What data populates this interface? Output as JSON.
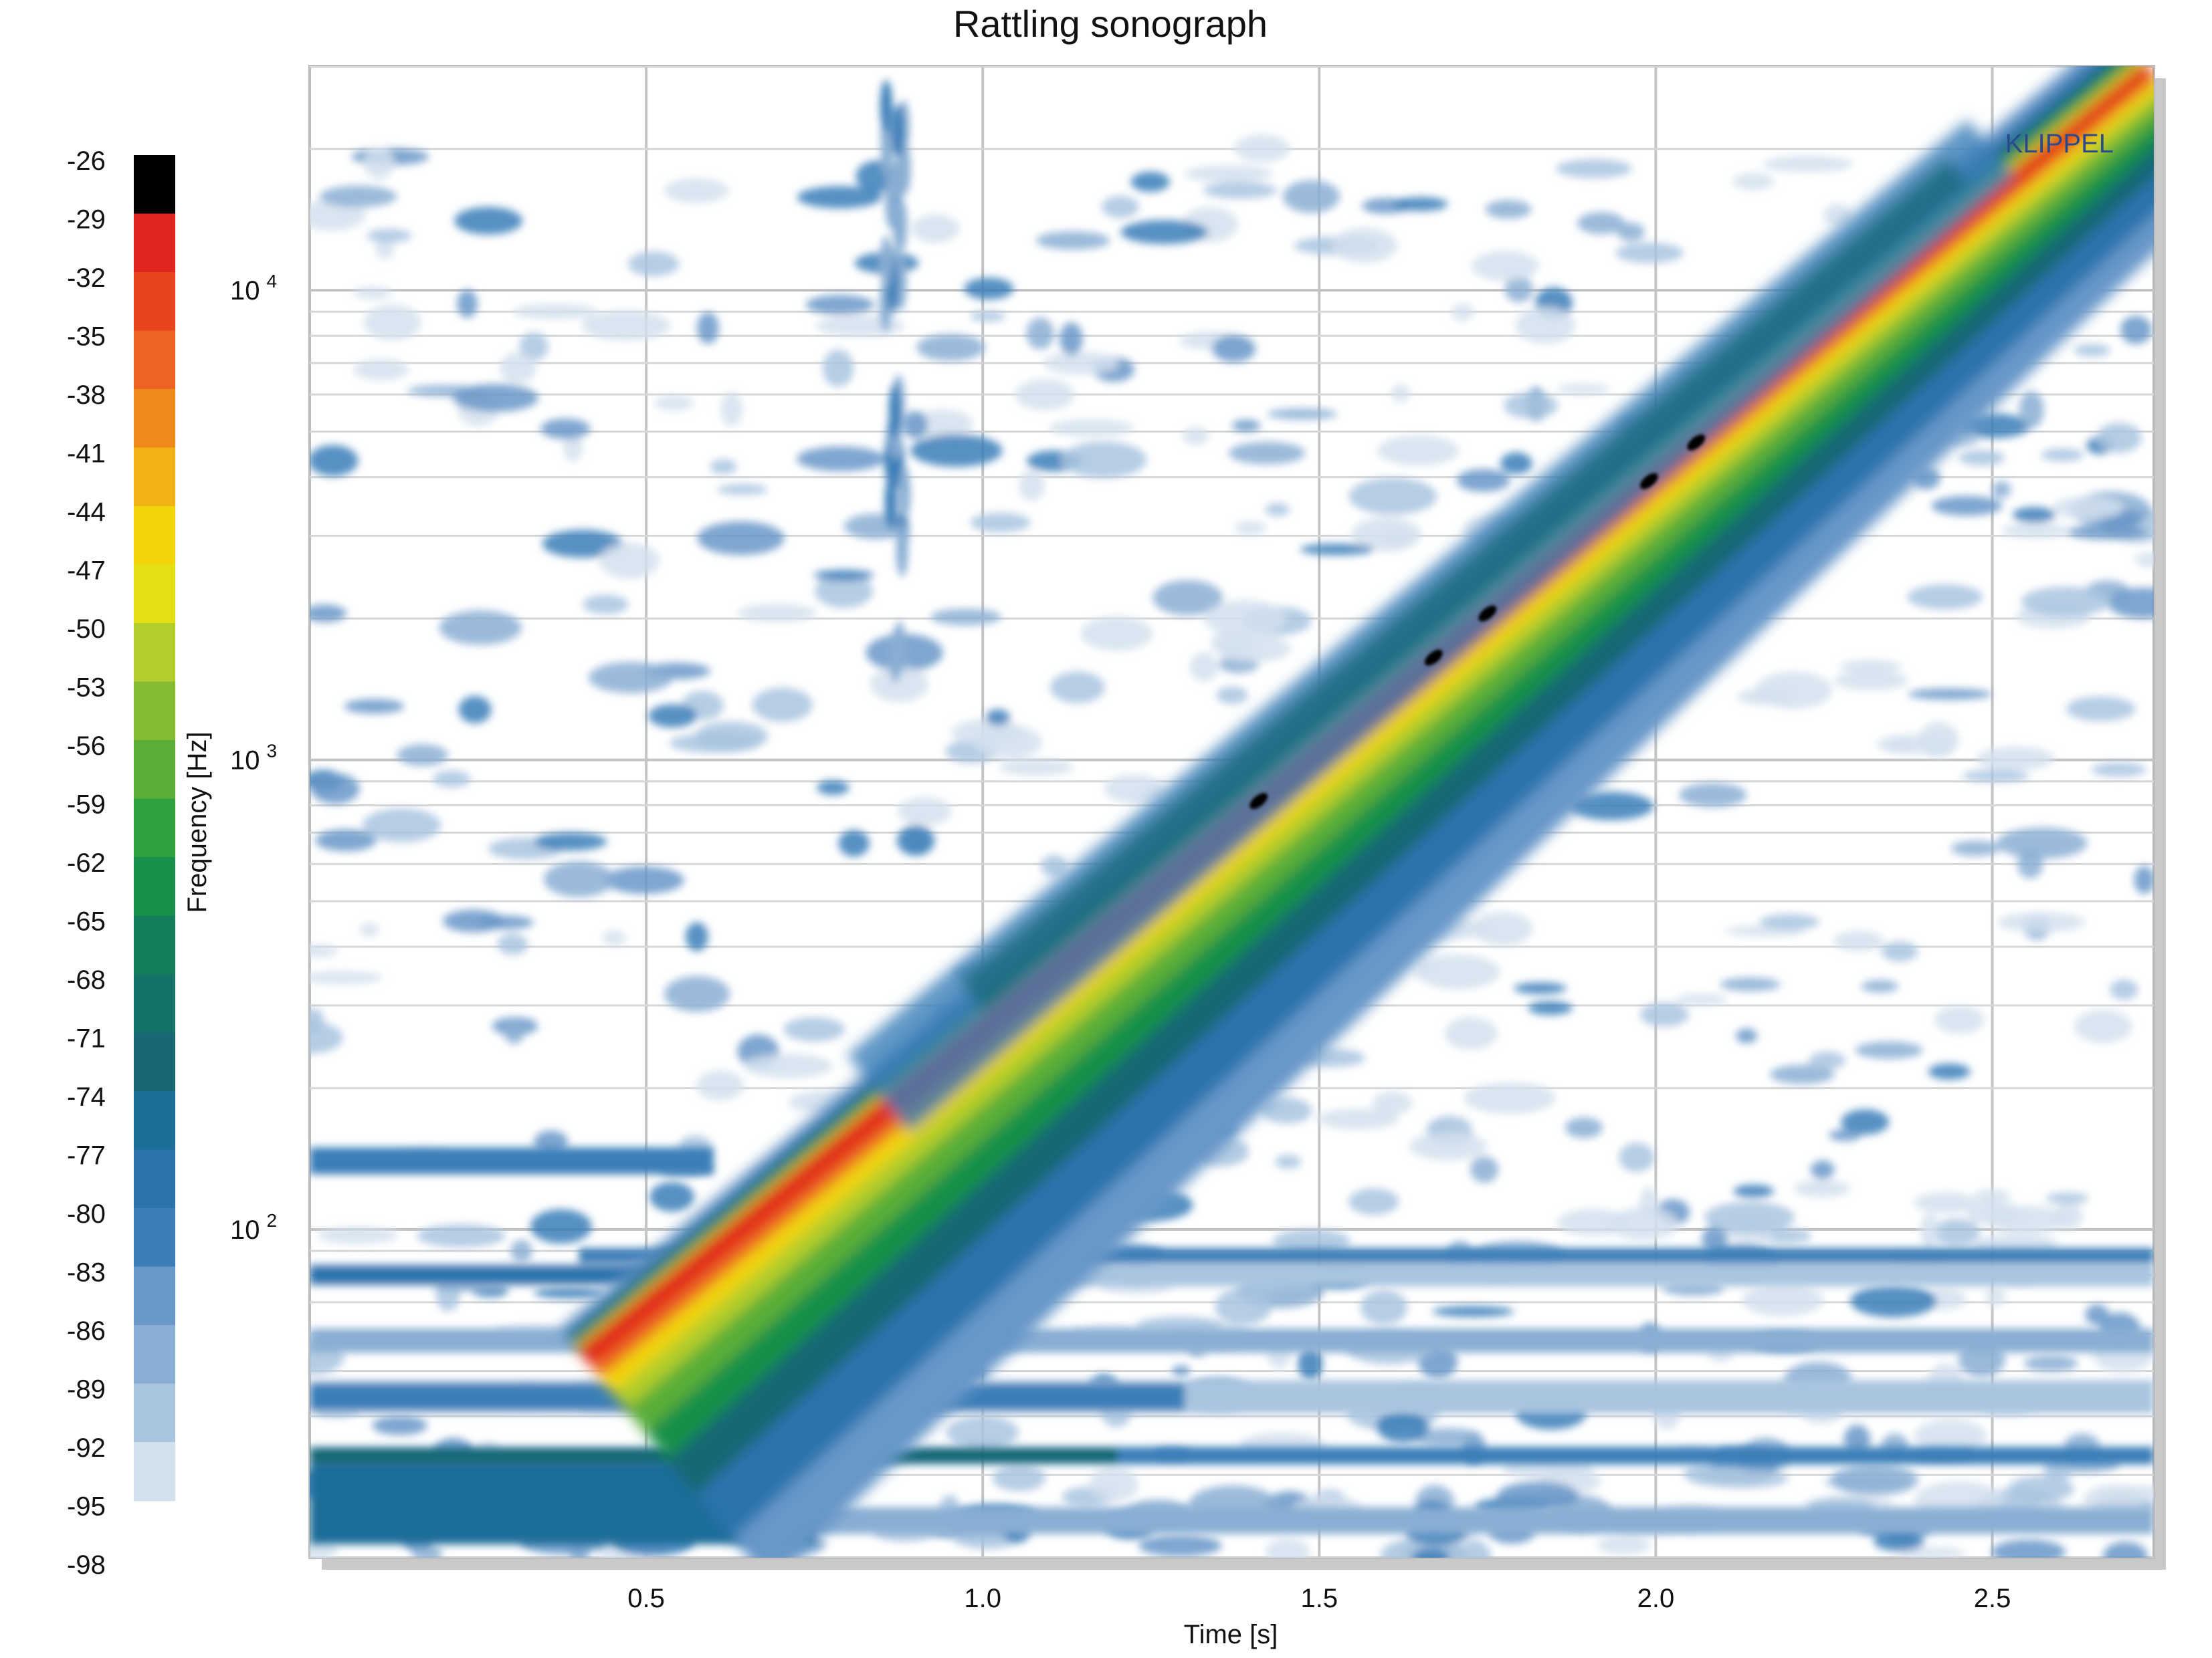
{
  "chart_data": {
    "type": "heatmap",
    "title": "Rattling sonograph",
    "xlabel": "Time [s]",
    "ylabel": "Frequency [Hz]",
    "xlim": [
      0,
      2.74
    ],
    "ylim": [
      20,
      30000
    ],
    "y_scale": "log",
    "grid": true,
    "x_ticks": [
      {
        "value": 0.5,
        "label": "0.5"
      },
      {
        "value": 1.0,
        "label": "1.0"
      },
      {
        "value": 1.5,
        "label": "1.5"
      },
      {
        "value": 2.0,
        "label": "2.0"
      },
      {
        "value": 2.5,
        "label": "2.5"
      }
    ],
    "y_ticks": [
      {
        "value": 100,
        "base": "10",
        "exp": "2"
      },
      {
        "value": 1000,
        "base": "10",
        "exp": "3"
      },
      {
        "value": 10000,
        "base": "10",
        "exp": "4"
      }
    ],
    "colorbar": {
      "levels": [
        "-26",
        "-29",
        "-32",
        "-35",
        "-38",
        "-41",
        "-44",
        "-47",
        "-50",
        "-53",
        "-56",
        "-59",
        "-62",
        "-65",
        "-68",
        "-71",
        "-74",
        "-77",
        "-80",
        "-83",
        "-86",
        "-89",
        "-92",
        "-95",
        "-98"
      ],
      "colors": [
        "#000000",
        "#e0241e",
        "#e8441f",
        "#ec6322",
        "#ee8a1a",
        "#f0b214",
        "#f2d40a",
        "#e3df12",
        "#b3cd2a",
        "#85bb33",
        "#5aae38",
        "#30a13f",
        "#16904a",
        "#127f5a",
        "#147266",
        "#176873",
        "#1d6d99",
        "#2a73ad",
        "#3b7eb8",
        "#6897c8",
        "#89aed3",
        "#a9c4df",
        "#d3e0ee"
      ]
    },
    "sweep": {
      "t_start": 0.4,
      "f_start": 55,
      "t_end": 2.73,
      "f_end": 30000
    },
    "watermark": "KLIPPEL"
  }
}
